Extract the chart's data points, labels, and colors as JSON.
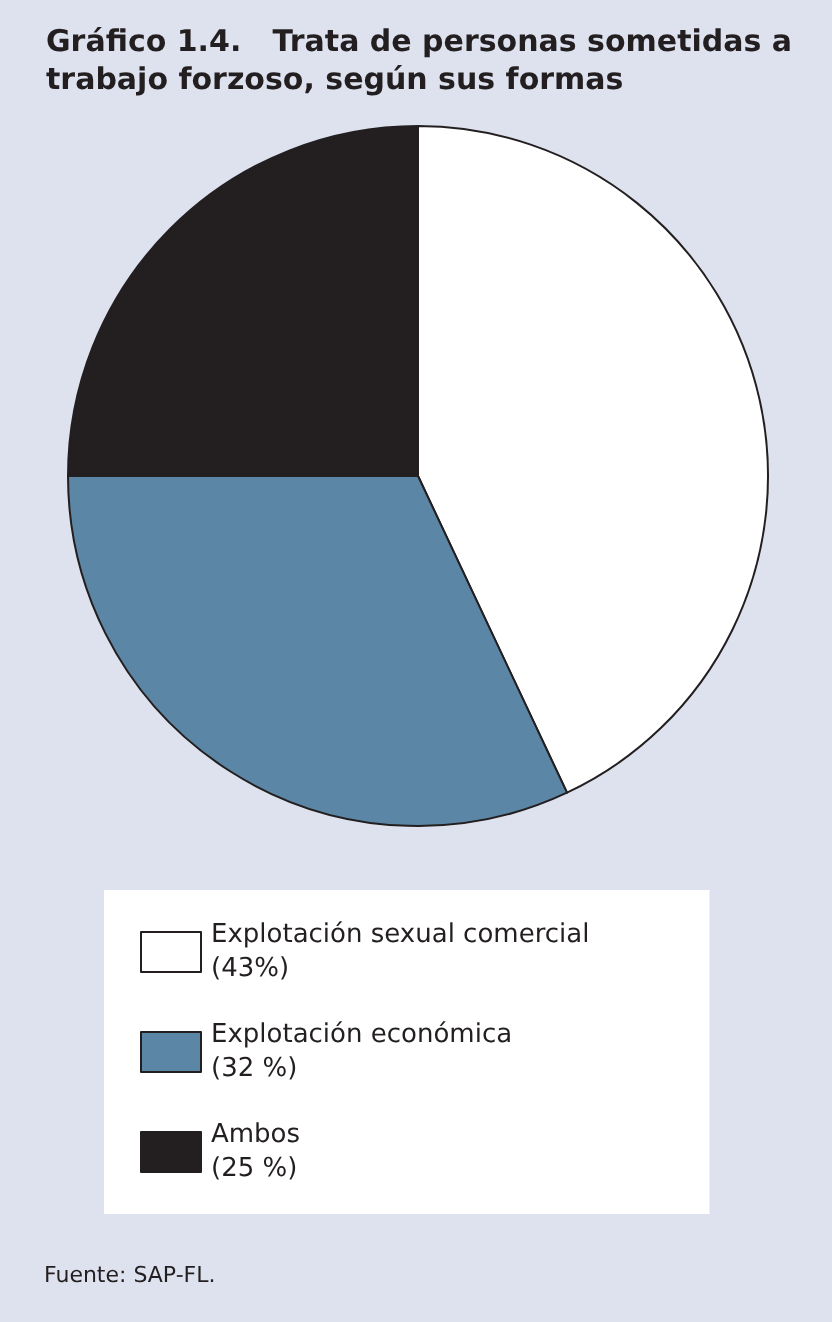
{
  "chart_data": {
    "type": "pie",
    "title": "Gráfico 1.4.   Trata de personas sometidas a trabajo forzoso, según sus formas",
    "categories": [
      "Explotación sexual comercial",
      "Explotación económica",
      "Ambos"
    ],
    "values": [
      43,
      32,
      25
    ],
    "value_labels": [
      "(43%)",
      "(32 %)",
      "(25 %)"
    ],
    "colors": [
      "#ffffff",
      "#5b86a6",
      "#231f20"
    ],
    "legend": "bottom",
    "annotations": [
      "Fuente: SAP-FL."
    ]
  }
}
